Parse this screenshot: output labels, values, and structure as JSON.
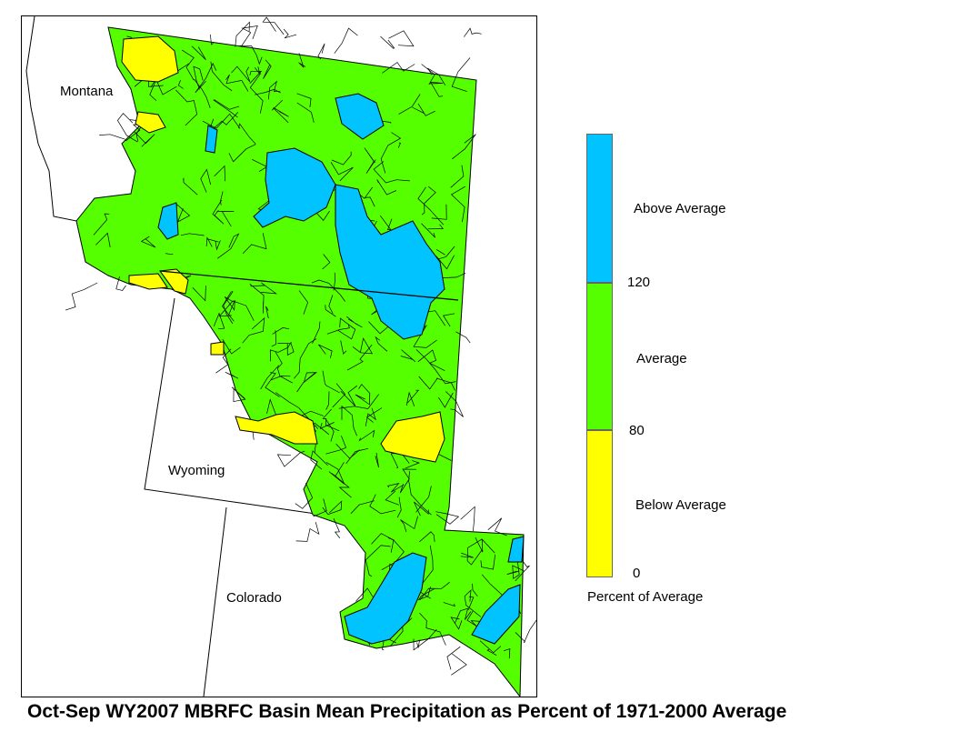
{
  "colors": {
    "above": "#00c3ff",
    "average": "#55ff00",
    "below": "#ffff00",
    "outline": "#000000",
    "background": "#ffffff"
  },
  "states": {
    "montana": "Montana",
    "wyoming": "Wyoming",
    "colorado": "Colorado"
  },
  "legend": {
    "above_label": "Above Average",
    "average_label": "Average",
    "below_label": "Below Average",
    "tick_120": "120",
    "tick_80": "80",
    "tick_0": "0",
    "caption": "Percent of Average"
  },
  "title": "Oct-Sep WY2007 MBRFC Basin Mean Precipitation as Percent of 1971-2000 Average"
}
